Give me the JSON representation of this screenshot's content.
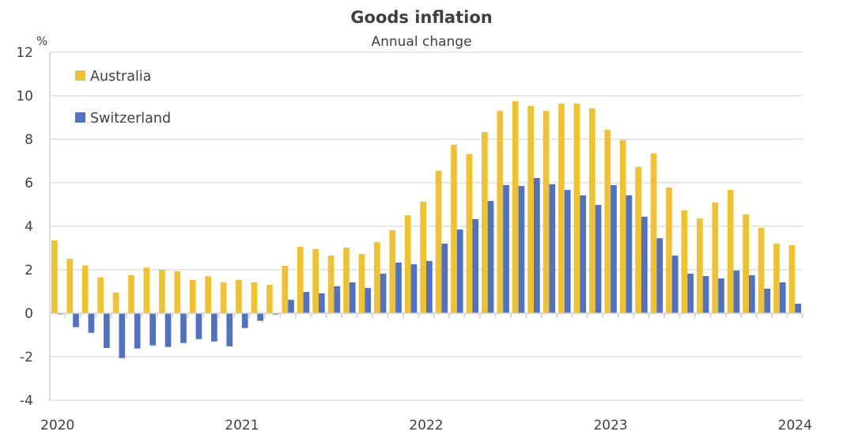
{
  "chart_data": {
    "type": "bar",
    "title": "Goods inflation",
    "subtitle": "Annual change",
    "ylabel": "%",
    "xlabel": "",
    "ylim": [
      -4,
      12
    ],
    "yticks": [
      -4,
      -2,
      0,
      2,
      4,
      6,
      8,
      10,
      12
    ],
    "ytick_labels": [
      "-4",
      "-2",
      "0",
      "2",
      "4",
      "6",
      "8",
      "10",
      "12"
    ],
    "xtick_labels": [
      "2020",
      "2021",
      "2022",
      "2023",
      "2024"
    ],
    "xtick_positions_month_index": [
      0,
      12,
      24,
      36,
      48
    ],
    "grid": true,
    "legend_position": "top-left",
    "categories": [
      "Jan 2020",
      "Feb 2020",
      "Mar 2020",
      "Apr 2020",
      "May 2020",
      "Jun 2020",
      "Jul 2020",
      "Aug 2020",
      "Sep 2020",
      "Oct 2020",
      "Nov 2020",
      "Dec 2020",
      "Jan 2021",
      "Feb 2021",
      "Mar 2021",
      "Apr 2021",
      "May 2021",
      "Jun 2021",
      "Jul 2021",
      "Aug 2021",
      "Sep 2021",
      "Oct 2021",
      "Nov 2021",
      "Dec 2021",
      "Jan 2022",
      "Feb 2022",
      "Mar 2022",
      "Apr 2022",
      "May 2022",
      "Jun 2022",
      "Jul 2022",
      "Aug 2022",
      "Sep 2022",
      "Oct 2022",
      "Nov 2022",
      "Dec 2022",
      "Jan 2023",
      "Feb 2023",
      "Mar 2023",
      "Apr 2023",
      "May 2023",
      "Jun 2023",
      "Jul 2023",
      "Aug 2023",
      "Sep 2023",
      "Oct 2023",
      "Nov 2023",
      "Dec 2023",
      "Jan 2024"
    ],
    "series": [
      {
        "name": "Australia",
        "color": "#f0c230",
        "values": [
          3.35,
          2.5,
          2.2,
          1.65,
          0.95,
          1.75,
          2.1,
          2.0,
          1.93,
          1.53,
          1.7,
          1.42,
          1.53,
          1.42,
          1.31,
          2.18,
          3.05,
          2.95,
          2.65,
          3.02,
          2.73,
          3.27,
          3.82,
          4.5,
          5.13,
          6.55,
          7.75,
          7.32,
          8.33,
          9.3,
          9.75,
          9.53,
          9.3,
          9.64,
          9.64,
          9.42,
          8.43,
          7.96,
          6.73,
          7.35,
          5.78,
          4.73,
          4.36,
          5.09,
          5.67,
          4.55,
          3.93,
          3.2,
          3.13
        ]
      },
      {
        "name": "Switzerland",
        "color": "#5172c2",
        "values": [
          -0.05,
          -0.64,
          -0.9,
          -1.6,
          -2.06,
          -1.62,
          -1.48,
          -1.55,
          -1.37,
          -1.19,
          -1.3,
          -1.52,
          -0.68,
          -0.35,
          -0.06,
          0.62,
          0.98,
          0.91,
          1.24,
          1.42,
          1.16,
          1.82,
          2.33,
          2.25,
          2.4,
          3.2,
          3.85,
          4.33,
          5.16,
          5.89,
          5.85,
          6.22,
          5.93,
          5.67,
          5.42,
          4.98,
          5.89,
          5.42,
          4.44,
          3.45,
          2.65,
          1.82,
          1.71,
          1.6,
          1.96,
          1.75,
          1.13,
          1.42,
          0.44
        ]
      }
    ]
  }
}
